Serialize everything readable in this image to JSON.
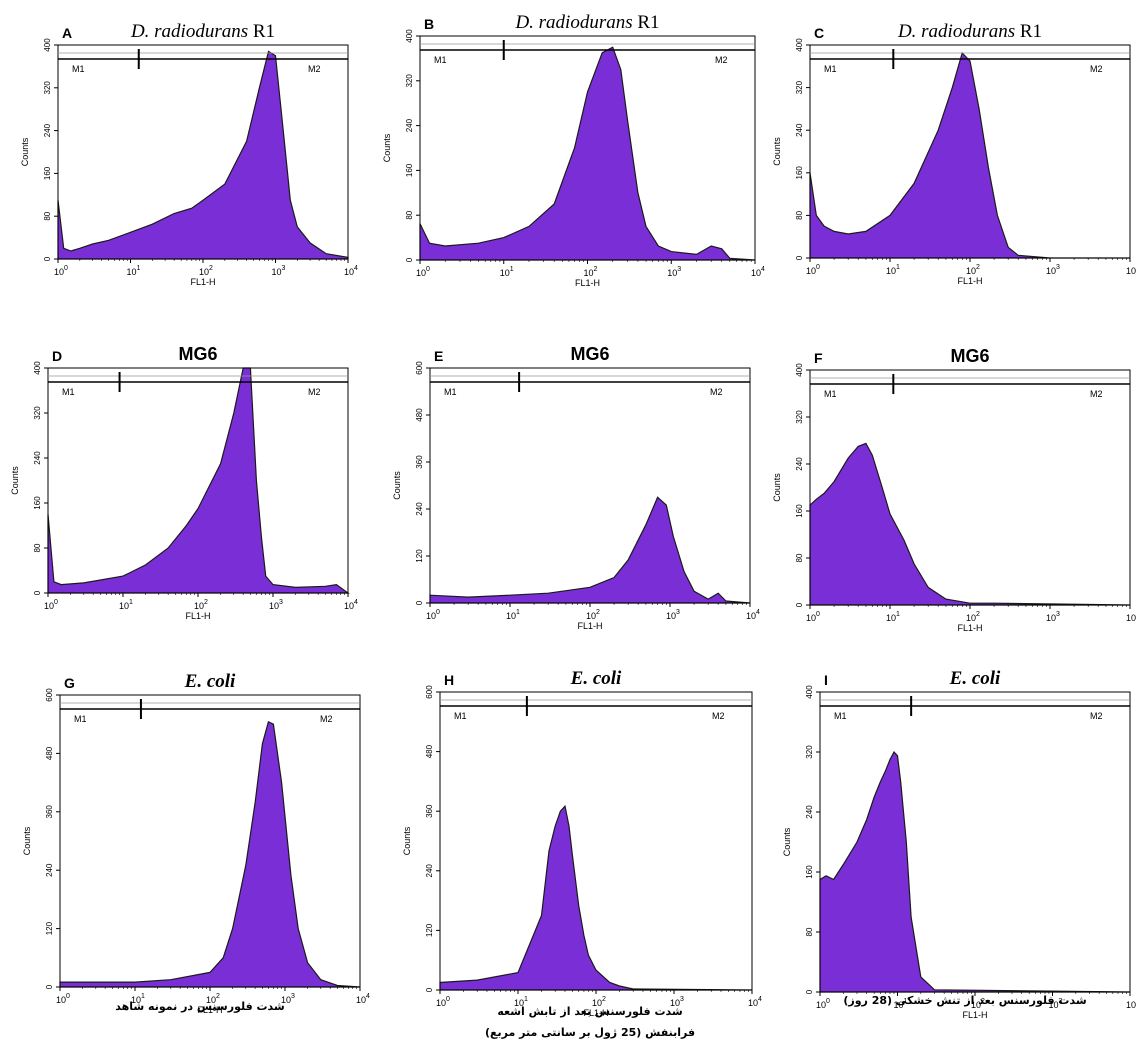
{
  "chart_data": [
    {
      "type": "area",
      "panel": "A",
      "title": "D. radiodurans R1",
      "title_italic": "D. radiodurans",
      "title_suffix": "R1",
      "xlabel": "FL1-H",
      "ylabel": "Counts",
      "xscale": "log",
      "xlim": [
        1,
        10000
      ],
      "ylim": [
        0,
        400
      ],
      "yticks": [
        0,
        80,
        160,
        240,
        320,
        400
      ],
      "markers": [
        {
          "name": "M1",
          "from": 1,
          "to": 13
        },
        {
          "name": "M2",
          "from": 13,
          "to": 10000
        }
      ],
      "x": [
        1,
        1.2,
        1.5,
        2,
        3,
        5,
        10,
        20,
        40,
        70,
        100,
        200,
        400,
        600,
        800,
        1000,
        1300,
        1600,
        2000,
        3000,
        5000,
        10000
      ],
      "y": [
        110,
        20,
        15,
        20,
        28,
        35,
        50,
        65,
        85,
        95,
        110,
        140,
        220,
        320,
        388,
        380,
        230,
        110,
        60,
        30,
        10,
        3
      ]
    },
    {
      "type": "area",
      "panel": "B",
      "title": "D. radiodurans R1",
      "title_italic": "D. radiodurans",
      "title_suffix": "R1",
      "xlabel": "FL1-H",
      "ylabel": "Counts",
      "xscale": "log",
      "xlim": [
        1,
        10000
      ],
      "ylim": [
        0,
        400
      ],
      "yticks": [
        0,
        80,
        160,
        240,
        320,
        400
      ],
      "markers": [
        {
          "name": "M1",
          "from": 1,
          "to": 10
        },
        {
          "name": "M2",
          "from": 10,
          "to": 10000
        }
      ],
      "x": [
        1,
        1.3,
        2,
        5,
        10,
        20,
        40,
        70,
        100,
        150,
        200,
        250,
        300,
        400,
        500,
        700,
        1000,
        2000,
        3000,
        4000,
        5000,
        10000
      ],
      "y": [
        65,
        30,
        25,
        30,
        40,
        60,
        100,
        200,
        300,
        370,
        380,
        340,
        250,
        120,
        60,
        25,
        15,
        10,
        25,
        20,
        3,
        0
      ]
    },
    {
      "type": "area",
      "panel": "C",
      "title": "D. radiodurans R1",
      "title_italic": "D. radiodurans",
      "title_suffix": "R1",
      "xlabel": "FL1-H",
      "ylabel": "Counts",
      "xscale": "log",
      "xlim": [
        1,
        10000
      ],
      "ylim": [
        0,
        400
      ],
      "yticks": [
        0,
        80,
        160,
        240,
        320,
        400
      ],
      "markers": [
        {
          "name": "M1",
          "from": 1,
          "to": 11
        },
        {
          "name": "M2",
          "from": 11,
          "to": 10000
        }
      ],
      "x": [
        1,
        1.2,
        1.5,
        2,
        3,
        5,
        10,
        20,
        40,
        60,
        80,
        100,
        130,
        170,
        220,
        300,
        400,
        1000,
        10000
      ],
      "y": [
        160,
        80,
        60,
        50,
        45,
        50,
        80,
        140,
        240,
        320,
        385,
        370,
        280,
        170,
        80,
        20,
        5,
        0,
        0
      ]
    },
    {
      "type": "area",
      "panel": "D",
      "title": "MG6",
      "xlabel": "FL1-H",
      "ylabel": "Counts",
      "xscale": "log",
      "xlim": [
        1,
        10000
      ],
      "ylim": [
        0,
        400
      ],
      "yticks": [
        0,
        80,
        160,
        240,
        320,
        400
      ],
      "markers": [
        {
          "name": "M1",
          "from": 1,
          "to": 9
        },
        {
          "name": "M2",
          "from": 9,
          "to": 10000
        }
      ],
      "x": [
        1,
        1.2,
        1.5,
        3,
        10,
        20,
        40,
        70,
        100,
        200,
        300,
        400,
        500,
        600,
        700,
        800,
        1000,
        2000,
        5000,
        7000,
        10000
      ],
      "y": [
        140,
        20,
        15,
        18,
        30,
        50,
        80,
        120,
        150,
        230,
        320,
        400,
        400,
        200,
        100,
        30,
        15,
        10,
        12,
        15,
        0
      ]
    },
    {
      "type": "area",
      "panel": "E",
      "title": "MG6",
      "xlabel": "FL1-H",
      "ylabel": "Counts",
      "xscale": "log",
      "xlim": [
        1,
        10000
      ],
      "ylim": [
        0,
        600
      ],
      "yticks": [
        0,
        120,
        240,
        360,
        480,
        600
      ],
      "markers": [
        {
          "name": "M1",
          "from": 1,
          "to": 13
        },
        {
          "name": "M2",
          "from": 13,
          "to": 10000
        }
      ],
      "x": [
        1,
        3,
        10,
        30,
        100,
        200,
        300,
        500,
        700,
        900,
        1100,
        1500,
        2000,
        3000,
        4000,
        5000,
        10000
      ],
      "y": [
        20,
        15,
        20,
        25,
        40,
        65,
        110,
        200,
        270,
        250,
        170,
        80,
        30,
        10,
        25,
        5,
        0
      ]
    },
    {
      "type": "area",
      "panel": "F",
      "title": "MG6",
      "xlabel": "FL1-H",
      "ylabel": "Counts",
      "xscale": "log",
      "xlim": [
        1,
        10000
      ],
      "ylim": [
        0,
        400
      ],
      "yticks": [
        0,
        80,
        160,
        240,
        320,
        400
      ],
      "markers": [
        {
          "name": "M1",
          "from": 1,
          "to": 11
        },
        {
          "name": "M2",
          "from": 11,
          "to": 10000
        }
      ],
      "x": [
        1,
        1.2,
        1.5,
        2,
        3,
        4,
        5,
        6,
        8,
        10,
        15,
        20,
        30,
        50,
        100,
        200,
        10000
      ],
      "y": [
        170,
        180,
        190,
        210,
        250,
        270,
        275,
        255,
        200,
        155,
        110,
        70,
        30,
        10,
        3,
        3,
        0
      ]
    },
    {
      "type": "area",
      "panel": "G",
      "title": "E. coli",
      "title_italic": "E. coli",
      "xlabel": "FL1-H",
      "ylabel": "Counts",
      "xscale": "log",
      "xlim": [
        1,
        10000
      ],
      "ylim": [
        0,
        600
      ],
      "yticks": [
        0,
        120,
        240,
        360,
        480,
        600
      ],
      "markers": [
        {
          "name": "M1",
          "from": 1,
          "to": 12
        },
        {
          "name": "M2",
          "from": 12,
          "to": 10000
        }
      ],
      "x": [
        1,
        3,
        10,
        30,
        100,
        150,
        200,
        300,
        400,
        500,
        600,
        700,
        900,
        1200,
        1500,
        2000,
        3000,
        5000,
        10000
      ],
      "y": [
        10,
        10,
        10,
        15,
        30,
        60,
        120,
        250,
        380,
        500,
        545,
        540,
        420,
        230,
        120,
        50,
        15,
        3,
        0
      ]
    },
    {
      "type": "area",
      "panel": "H",
      "title": "E. coli",
      "title_italic": "E. coli",
      "xlabel": "FL1-H",
      "ylabel": "Counts",
      "xscale": "log",
      "xlim": [
        1,
        10000
      ],
      "ylim": [
        0,
        600
      ],
      "yticks": [
        0,
        120,
        240,
        360,
        480,
        600
      ],
      "markers": [
        {
          "name": "M1",
          "from": 1,
          "to": 13
        },
        {
          "name": "M2",
          "from": 13,
          "to": 10000
        }
      ],
      "x": [
        1,
        3,
        10,
        20,
        25,
        30,
        35,
        40,
        45,
        50,
        60,
        70,
        80,
        100,
        150,
        200,
        300,
        10000
      ],
      "y": [
        15,
        20,
        35,
        150,
        280,
        330,
        360,
        370,
        330,
        270,
        170,
        110,
        70,
        40,
        15,
        8,
        2,
        0
      ]
    },
    {
      "type": "area",
      "panel": "I",
      "title": "E. coli",
      "title_italic": "E. coli",
      "xlabel": "FL1-H",
      "ylabel": "Counts",
      "xscale": "log",
      "xlim": [
        1,
        10000
      ],
      "ylim": [
        0,
        400
      ],
      "yticks": [
        0,
        80,
        160,
        240,
        320,
        400
      ],
      "markers": [
        {
          "name": "M1",
          "from": 1,
          "to": 15
        },
        {
          "name": "M2",
          "from": 15,
          "to": 10000
        }
      ],
      "x": [
        1,
        1.2,
        1.5,
        2,
        3,
        4,
        5,
        6,
        7,
        8,
        9,
        10,
        11,
        13,
        15,
        20,
        30,
        10000
      ],
      "y": [
        150,
        155,
        150,
        170,
        200,
        230,
        260,
        280,
        295,
        310,
        320,
        315,
        280,
        200,
        100,
        20,
        3,
        0
      ]
    }
  ],
  "captions": [
    {
      "lines": [
        "شدت فلورسنس در نمونه شاهد"
      ]
    },
    {
      "lines": [
        "شدت فلورسنس بعد از تابش اشعه",
        "فرابنفش (25 ژول بر سانتی متر مربع)"
      ]
    },
    {
      "lines": [
        "شدت فلورسنس بعد از تنش خشکی (28 روز)"
      ]
    }
  ],
  "colors": {
    "fill": "#7a2fd6",
    "stroke": "#1a1a1a",
    "frame": "#000000",
    "marker_line": "#555555"
  }
}
